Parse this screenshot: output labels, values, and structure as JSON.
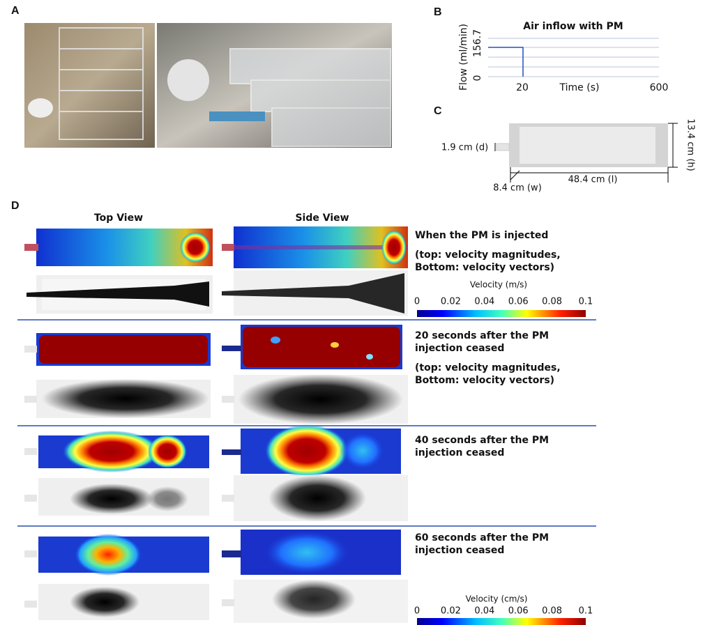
{
  "panel_a": {
    "label": "A"
  },
  "panel_b": {
    "label": "B",
    "title": "Air inflow with PM",
    "y_label": "Flow (ml/min)",
    "y_ticks": [
      "156.7",
      "0"
    ],
    "x_label": "Time (s)",
    "x_ticks": [
      "20",
      "600"
    ]
  },
  "panel_c": {
    "label": "C",
    "inlet": "1.9 cm (d)",
    "height": "13.4 cm (h)",
    "length": "48.4 cm (l)",
    "width": "8.4 cm (w)"
  },
  "panel_d": {
    "label": "D",
    "column_headers": [
      "Top View",
      "Side View"
    ],
    "rows": [
      {
        "caption": [
          "When the PM is injected",
          "(top: velocity magnitudes,",
          "Bottom: velocity vectors)"
        ]
      },
      {
        "caption": [
          "20 seconds after the PM",
          "injection ceased",
          "(top: velocity magnitudes,",
          "Bottom: velocity vectors)"
        ]
      },
      {
        "caption": [
          "40 seconds after the PM",
          "injection ceased"
        ]
      },
      {
        "caption": [
          "60 seconds after the PM",
          "injection ceased"
        ]
      }
    ],
    "colorbars": [
      {
        "label": "Velocity (m/s)",
        "ticks": [
          "0",
          "0.02",
          "0.04",
          "0.06",
          "0.08",
          "0.1"
        ]
      },
      {
        "label": "Velocity (cm/s)",
        "ticks": [
          "0",
          "0.02",
          "0.04",
          "0.06",
          "0.08",
          "0.1"
        ]
      }
    ]
  }
}
